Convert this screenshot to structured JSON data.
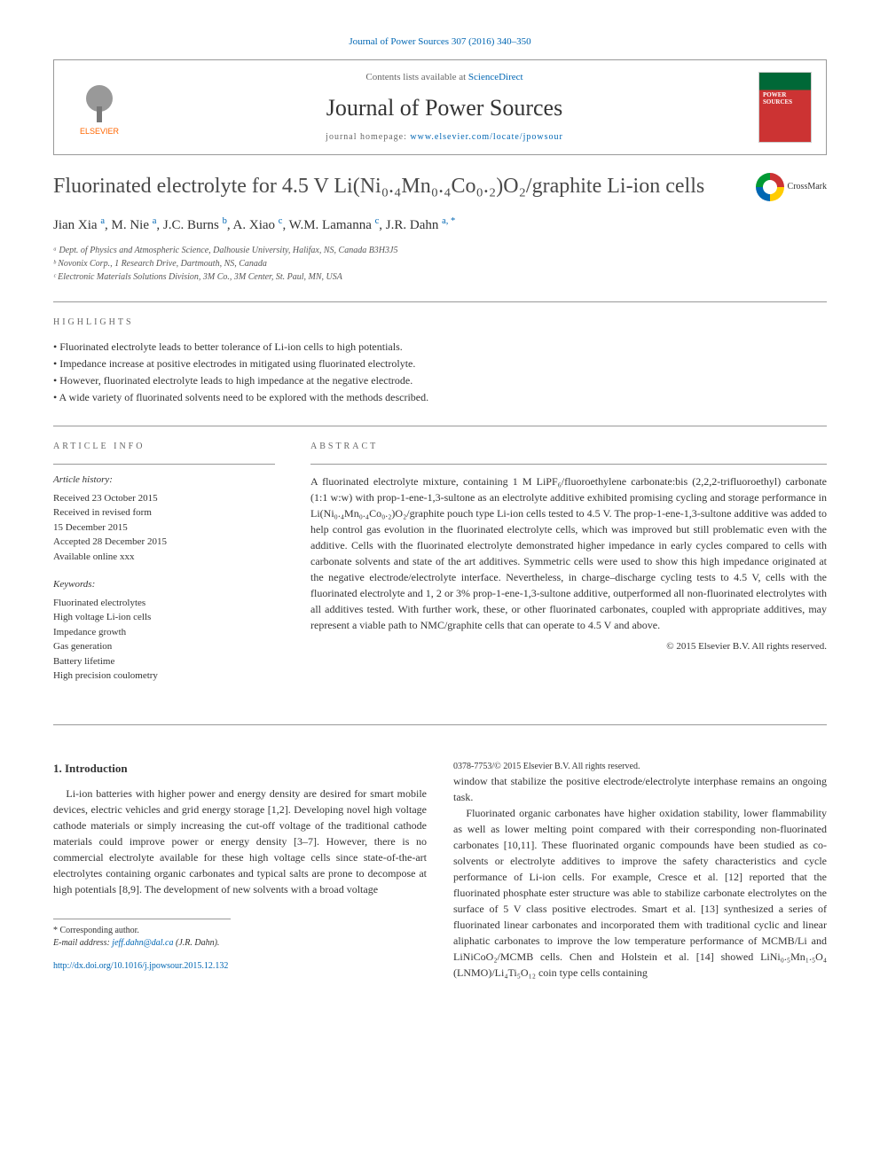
{
  "journal_ref": "Journal of Power Sources 307 (2016) 340–350",
  "header": {
    "publisher": "ELSEVIER",
    "contents_line_pre": "Contents lists available at ",
    "contents_link": "ScienceDirect",
    "journal_name": "Journal of Power Sources",
    "homepage_label": "journal homepage: ",
    "homepage_url": "www.elsevier.com/locate/jpowsour"
  },
  "title": "Fluorinated electrolyte for 4.5 V Li(Ni₀.₄Mn₀.₄Co₀.₂)O₂/graphite Li-ion cells",
  "crossmark": "CrossMark",
  "authors_html": "Jian Xia <span class='sup'>a</span>, M. Nie <span class='sup'>a</span>, J.C. Burns <span class='sup'>b</span>, A. Xiao <span class='sup'>c</span>, W.M. Lamanna <span class='sup'>c</span>, J.R. Dahn <span class='sup'>a, *</span>",
  "affiliations": [
    "ᵃ Dept. of Physics and Atmospheric Science, Dalhousie University, Halifax, NS, Canada B3H3J5",
    "ᵇ Novonix Corp., 1 Research Drive, Dartmouth, NS, Canada",
    "ᶜ Electronic Materials Solutions Division, 3M Co., 3M Center, St. Paul, MN, USA"
  ],
  "highlights_label": "HIGHLIGHTS",
  "highlights": [
    "Fluorinated electrolyte leads to better tolerance of Li-ion cells to high potentials.",
    "Impedance increase at positive electrodes in mitigated using fluorinated electrolyte.",
    "However, fluorinated electrolyte leads to high impedance at the negative electrode.",
    "A wide variety of fluorinated solvents need to be explored with the methods described."
  ],
  "article_info_label": "ARTICLE INFO",
  "abstract_label": "ABSTRACT",
  "history": {
    "label": "Article history:",
    "received": "Received 23 October 2015",
    "revised": "Received in revised form",
    "revised_date": "15 December 2015",
    "accepted": "Accepted 28 December 2015",
    "online": "Available online xxx"
  },
  "keywords_label": "Keywords:",
  "keywords": [
    "Fluorinated electrolytes",
    "High voltage Li-ion cells",
    "Impedance growth",
    "Gas generation",
    "Battery lifetime",
    "High precision coulometry"
  ],
  "abstract": "A fluorinated electrolyte mixture, containing 1 M LiPF₆/fluoroethylene carbonate:bis (2,2,2-trifluoroethyl) carbonate (1:1 w:w) with prop-1-ene-1,3-sultone as an electrolyte additive exhibited promising cycling and storage performance in Li(Ni₀.₄Mn₀.₄Co₀.₂)O₂/graphite pouch type Li-ion cells tested to 4.5 V. The prop-1-ene-1,3-sultone additive was added to help control gas evolution in the fluorinated electrolyte cells, which was improved but still problematic even with the additive. Cells with the fluorinated electrolyte demonstrated higher impedance in early cycles compared to cells with carbonate solvents and state of the art additives. Symmetric cells were used to show this high impedance originated at the negative electrode/electrolyte interface. Nevertheless, in charge–discharge cycling tests to 4.5 V, cells with the fluorinated electrolyte and 1, 2 or 3% prop-1-ene-1,3-sultone additive, outperformed all non-fluorinated electrolytes with all additives tested. With further work, these, or other fluorinated carbonates, coupled with appropriate additives, may represent a viable path to NMC/graphite cells that can operate to 4.5 V and above.",
  "copyright": "© 2015 Elsevier B.V. All rights reserved.",
  "intro_heading": "1. Introduction",
  "intro_p1": "Li-ion batteries with higher power and energy density are desired for smart mobile devices, electric vehicles and grid energy storage [1,2]. Developing novel high voltage cathode materials or simply increasing the cut-off voltage of the traditional cathode materials could improve power or energy density [3–7]. However, there is no commercial electrolyte available for these high voltage cells since state-of-the-art electrolytes containing organic carbonates and typical salts are prone to decompose at high potentials [8,9]. The development of new solvents with a broad voltage",
  "intro_p2": "window that stabilize the positive electrode/electrolyte interphase remains an ongoing task.",
  "intro_p3": "Fluorinated organic carbonates have higher oxidation stability, lower flammability as well as lower melting point compared with their corresponding non-fluorinated carbonates [10,11]. These fluorinated organic compounds have been studied as co-solvents or electrolyte additives to improve the safety characteristics and cycle performance of Li-ion cells. For example, Cresce et al. [12] reported that the fluorinated phosphate ester structure was able to stabilize carbonate electrolytes on the surface of 5 V class positive electrodes. Smart et al. [13] synthesized a series of fluorinated linear carbonates and incorporated them with traditional cyclic and linear aliphatic carbonates to improve the low temperature performance of MCMB/Li and LiNiCoO₂/MCMB cells. Chen and Holstein et al. [14] showed LiNi₀.₅Mn₁.₅O₄ (LNMO)/Li₄Ti₅O₁₂ coin type cells containing",
  "corresponding": {
    "label": "* Corresponding author.",
    "email_label": "E-mail address: ",
    "email": "jeff.dahn@dal.ca",
    "email_name": " (J.R. Dahn)."
  },
  "footer": {
    "doi": "http://dx.doi.org/10.1016/j.jpowsour.2015.12.132",
    "issn": "0378-7753/© 2015 Elsevier B.V. All rights reserved."
  },
  "colors": {
    "link": "#0066b3",
    "publisher_orange": "#ff6600",
    "cover_green": "#006837",
    "cover_red": "#cc3333"
  }
}
